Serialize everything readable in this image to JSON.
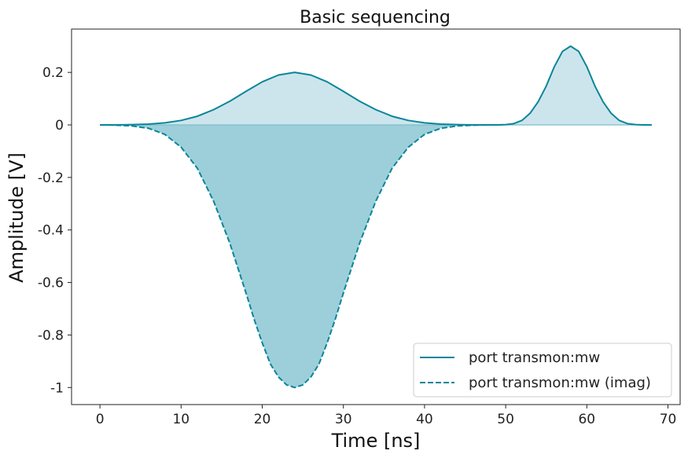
{
  "chart_data": {
    "type": "line",
    "title": "Basic sequencing",
    "xlabel": "Time [ns]",
    "ylabel": "Amplitude [V]",
    "xlim": [
      -3.5,
      71.5
    ],
    "ylim": [
      -1.065,
      0.365
    ],
    "xticks": [
      0,
      10,
      20,
      30,
      40,
      50,
      60,
      70
    ],
    "xtick_labels": [
      "0",
      "10",
      "20",
      "30",
      "40",
      "50",
      "60",
      "70"
    ],
    "yticks": [
      0.2,
      0,
      -0.2,
      -0.4,
      -0.6,
      -0.8,
      -1
    ],
    "ytick_labels": [
      "0.2",
      "0",
      "-0.2",
      "-0.4",
      "-0.6",
      "-0.8",
      "-1"
    ],
    "grid": false,
    "legend_position": "bottom-right",
    "series": [
      {
        "name": "port transmon:mw",
        "style": "solid",
        "fill": true,
        "color": "#0a8599",
        "fill_color": "#cce5ec",
        "x": [
          0,
          2,
          4,
          6,
          8,
          10,
          12,
          14,
          16,
          18,
          20,
          22,
          24,
          26,
          28,
          30,
          32,
          34,
          36,
          38,
          40,
          42,
          44,
          46,
          48,
          49,
          50,
          51,
          52,
          53,
          54,
          55,
          56,
          57,
          58,
          59,
          60,
          61,
          62,
          63,
          64,
          65,
          66,
          67,
          68
        ],
        "y": [
          0.0,
          0.0,
          0.001,
          0.003,
          0.008,
          0.017,
          0.033,
          0.058,
          0.09,
          0.128,
          0.164,
          0.19,
          0.2,
          0.19,
          0.164,
          0.128,
          0.09,
          0.058,
          0.033,
          0.017,
          0.008,
          0.003,
          0.001,
          0.0,
          0.0,
          0.0,
          0.001,
          0.005,
          0.017,
          0.044,
          0.088,
          0.148,
          0.222,
          0.28,
          0.3,
          0.28,
          0.222,
          0.148,
          0.088,
          0.044,
          0.017,
          0.005,
          0.001,
          0.0,
          0.0
        ]
      },
      {
        "name": "port transmon:mw (imag)",
        "style": "dashed",
        "fill": true,
        "color": "#0a8599",
        "fill_color": "#9ccfda",
        "x": [
          0,
          2,
          4,
          6,
          8,
          10,
          12,
          14,
          16,
          18,
          19,
          20,
          21,
          22,
          23,
          24,
          25,
          26,
          27,
          28,
          29,
          30,
          32,
          34,
          36,
          38,
          40,
          42,
          44,
          46,
          48
        ],
        "y": [
          0.0,
          -0.001,
          -0.004,
          -0.013,
          -0.036,
          -0.085,
          -0.165,
          -0.29,
          -0.45,
          -0.64,
          -0.74,
          -0.83,
          -0.91,
          -0.96,
          -0.99,
          -1.0,
          -0.99,
          -0.96,
          -0.91,
          -0.83,
          -0.74,
          -0.64,
          -0.45,
          -0.29,
          -0.165,
          -0.085,
          -0.036,
          -0.013,
          -0.004,
          -0.001,
          0.0
        ]
      }
    ]
  }
}
